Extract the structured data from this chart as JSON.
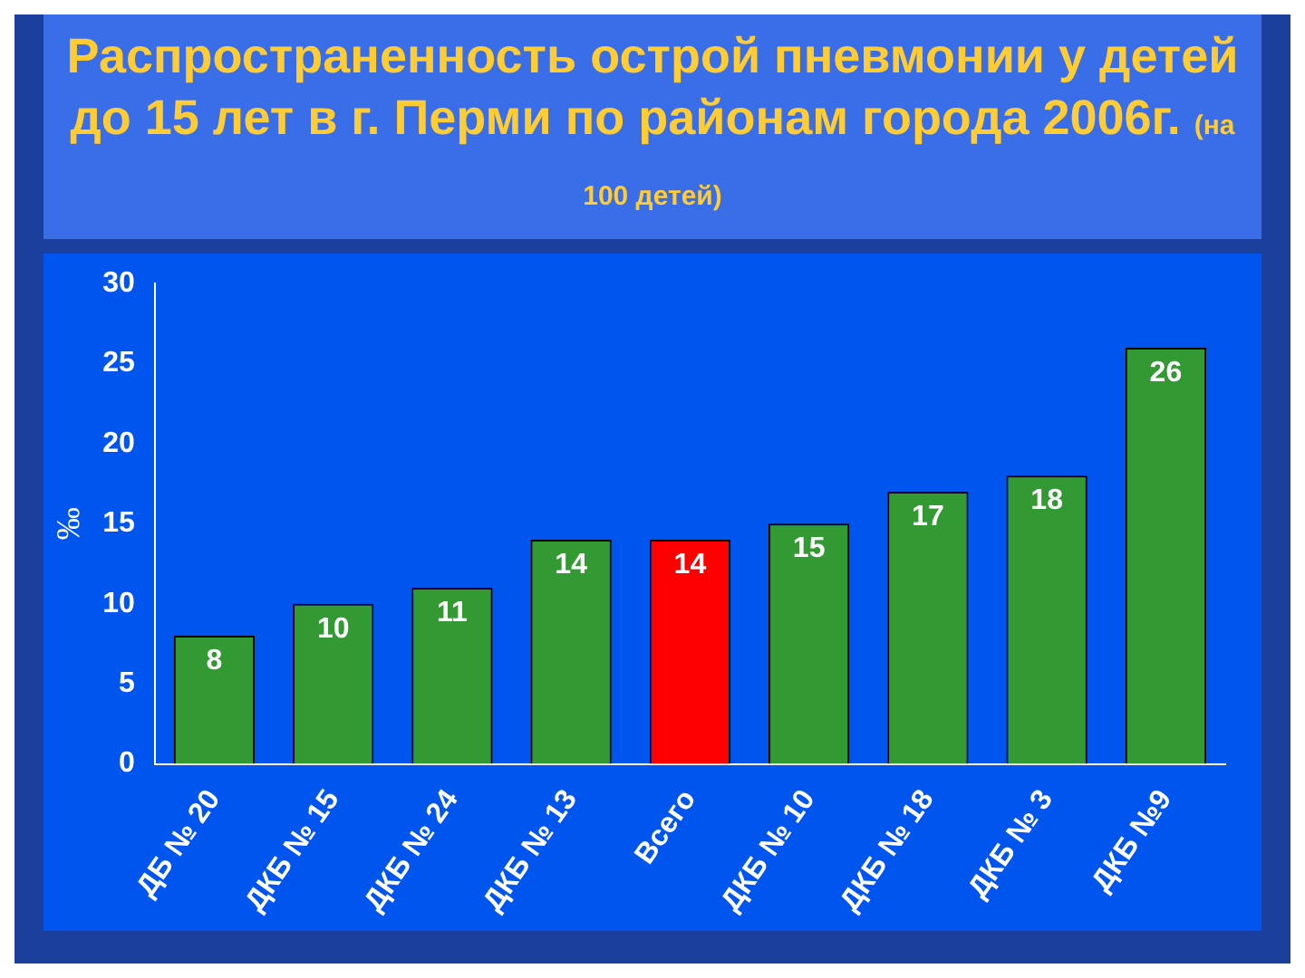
{
  "chart_data": {
    "type": "bar",
    "title": "Распространенность острой пневмонии у детей до 15 лет в г. Перми по районам города 2006г.",
    "subtitle": "(на 100 детей)",
    "ylabel": "‰",
    "categories": [
      "ДБ № 20",
      "ДКБ № 15",
      "ДКБ № 24",
      "ДКБ № 13",
      "Всего",
      "ДКБ № 10",
      "ДКБ № 18",
      "ДКБ № 3",
      "ДКБ №9"
    ],
    "values": [
      8,
      10,
      11,
      14,
      14,
      15,
      17,
      18,
      26
    ],
    "colors": [
      "#339933",
      "#339933",
      "#339933",
      "#339933",
      "#ff0000",
      "#339933",
      "#339933",
      "#339933",
      "#339933"
    ],
    "ylim": [
      0,
      30
    ],
    "yticks": [
      0,
      5,
      10,
      15,
      20,
      25,
      30
    ],
    "data_labels": true,
    "grid": false,
    "legend": false
  }
}
